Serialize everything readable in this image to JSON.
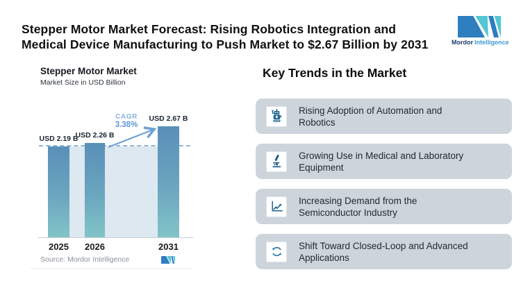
{
  "header": {
    "title_lines": [
      "Stepper Motor Market Forecast: Rising Robotics Integration and",
      "Medical Device Manufacturing to Push Market to $2.67 Billion by 2031"
    ]
  },
  "brand": {
    "primary": "Mordor",
    "secondary": "Intelligence",
    "mark_blue": "#2e7ec0",
    "mark_teal": "#53c5d3"
  },
  "chart_data": {
    "type": "bar",
    "title": "Stepper Motor Market",
    "subtitle": "Market Size in USD Billion",
    "categories": [
      "2025",
      "2026",
      "2031"
    ],
    "values": [
      2.19,
      2.26,
      2.67
    ],
    "bar_labels": [
      "USD 2.19 B",
      "USD 2.26 B",
      "USD 2.67 B"
    ],
    "ylim": [
      0,
      2.67
    ],
    "grid": false,
    "annotation": {
      "label": "CAGR",
      "value": "3.38%"
    },
    "reference_line_value": 2.19,
    "source": "Source: Mordor Intelligence",
    "colors": {
      "bar_top": "#5a8fb8",
      "bar_bottom": "#82c4c8",
      "band": "#dde8f0",
      "dashed_line": "#8cb6da",
      "annotation_text": "#6fa3d8",
      "arrow": "#6fa1d4"
    }
  },
  "trends": {
    "heading": "Key Trends in the Market",
    "items": [
      {
        "icon": "robot-icon",
        "lines": [
          "Rising Adoption of Automation and",
          "Robotics"
        ]
      },
      {
        "icon": "microscope-icon",
        "lines": [
          "Growing Use in Medical and Laboratory",
          "Equipment"
        ]
      },
      {
        "icon": "line-chart-icon",
        "lines": [
          "Increasing Demand from the",
          "Semiconductor Industry"
        ]
      },
      {
        "icon": "closed-loop-icon",
        "lines": [
          "Shift Toward Closed-Loop and Advanced",
          "Applications"
        ]
      }
    ]
  }
}
